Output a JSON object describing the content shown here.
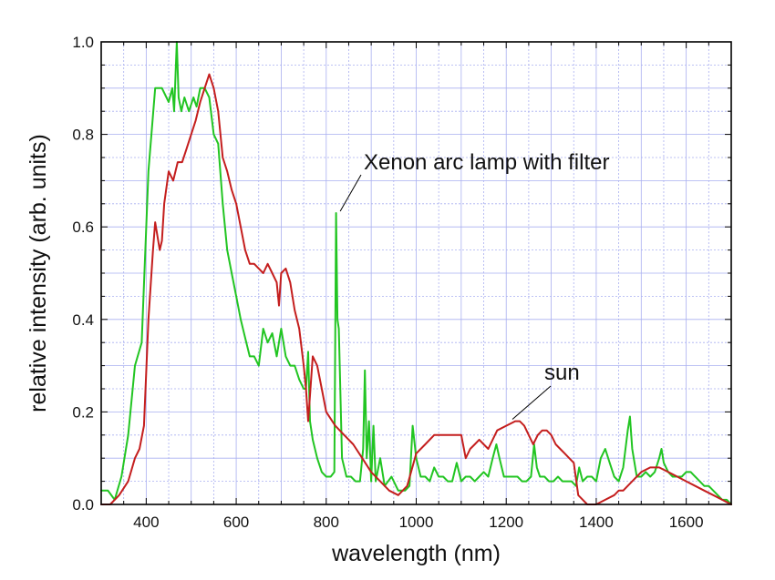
{
  "chart_data": {
    "type": "line",
    "title": "",
    "xlabel": "wavelength (nm)",
    "ylabel": "relative intensity (arb. units)",
    "xlim": [
      300,
      1700
    ],
    "ylim": [
      0,
      1.0
    ],
    "x_ticks": [
      400,
      600,
      800,
      1000,
      1200,
      1400,
      1600
    ],
    "x_tick_labels": [
      "400",
      "600",
      "800",
      "1000",
      "1200",
      "1400",
      "1600"
    ],
    "y_ticks": [
      0.0,
      0.2,
      0.4,
      0.6,
      0.8,
      1.0
    ],
    "y_tick_labels": [
      "0.0",
      "0.2",
      "0.4",
      "0.6",
      "0.8",
      "1.0"
    ],
    "grid": true,
    "grid_color": "#a9aff0",
    "annotations": [
      {
        "text": "Xenon arc lamp with filter",
        "x": 823,
        "y": 0.63
      },
      {
        "text": "sun",
        "x": 1230,
        "y": 0.18
      }
    ],
    "series": [
      {
        "color": "#22c522",
        "x": [
          300,
          315,
          330,
          345,
          360,
          375,
          390,
          405,
          420,
          435,
          450,
          458,
          462,
          468,
          472,
          478,
          485,
          495,
          505,
          512,
          520,
          530,
          540,
          550,
          560,
          570,
          580,
          590,
          600,
          610,
          620,
          630,
          640,
          650,
          660,
          670,
          680,
          690,
          700,
          710,
          720,
          730,
          740,
          750,
          755,
          760,
          764,
          770,
          780,
          790,
          800,
          810,
          818,
          822,
          825,
          828,
          835,
          845,
          855,
          865,
          875,
          882,
          886,
          890,
          895,
          900,
          905,
          910,
          920,
          930,
          945,
          960,
          975,
          985,
          992,
          1000,
          1010,
          1020,
          1030,
          1040,
          1050,
          1060,
          1070,
          1080,
          1090,
          1100,
          1110,
          1120,
          1130,
          1140,
          1150,
          1160,
          1170,
          1178,
          1185,
          1195,
          1205,
          1215,
          1225,
          1235,
          1245,
          1255,
          1262,
          1268,
          1275,
          1285,
          1295,
          1305,
          1315,
          1325,
          1335,
          1345,
          1355,
          1362,
          1370,
          1380,
          1390,
          1400,
          1410,
          1420,
          1430,
          1440,
          1450,
          1460,
          1470,
          1475,
          1480,
          1490,
          1500,
          1510,
          1520,
          1530,
          1540,
          1545,
          1550,
          1560,
          1570,
          1580,
          1590,
          1600,
          1610,
          1620,
          1630,
          1640,
          1650,
          1660,
          1670,
          1680,
          1690,
          1700
        ],
        "y": [
          0.03,
          0.03,
          0.01,
          0.06,
          0.15,
          0.3,
          0.35,
          0.72,
          0.9,
          0.9,
          0.87,
          0.9,
          0.85,
          1.0,
          0.88,
          0.85,
          0.88,
          0.85,
          0.88,
          0.86,
          0.9,
          0.9,
          0.88,
          0.8,
          0.78,
          0.65,
          0.55,
          0.5,
          0.45,
          0.4,
          0.36,
          0.32,
          0.32,
          0.3,
          0.38,
          0.35,
          0.37,
          0.32,
          0.38,
          0.32,
          0.3,
          0.3,
          0.27,
          0.25,
          0.25,
          0.33,
          0.18,
          0.14,
          0.1,
          0.07,
          0.06,
          0.06,
          0.07,
          0.63,
          0.4,
          0.38,
          0.1,
          0.06,
          0.06,
          0.05,
          0.05,
          0.12,
          0.29,
          0.1,
          0.18,
          0.05,
          0.17,
          0.05,
          0.1,
          0.04,
          0.06,
          0.03,
          0.03,
          0.04,
          0.17,
          0.1,
          0.06,
          0.06,
          0.05,
          0.08,
          0.06,
          0.06,
          0.05,
          0.05,
          0.09,
          0.05,
          0.06,
          0.06,
          0.05,
          0.06,
          0.07,
          0.06,
          0.1,
          0.13,
          0.1,
          0.06,
          0.06,
          0.06,
          0.06,
          0.05,
          0.05,
          0.06,
          0.13,
          0.08,
          0.06,
          0.06,
          0.05,
          0.05,
          0.06,
          0.05,
          0.05,
          0.05,
          0.04,
          0.08,
          0.05,
          0.06,
          0.06,
          0.05,
          0.1,
          0.12,
          0.09,
          0.06,
          0.05,
          0.08,
          0.16,
          0.19,
          0.12,
          0.06,
          0.06,
          0.07,
          0.06,
          0.07,
          0.1,
          0.12,
          0.09,
          0.07,
          0.06,
          0.06,
          0.06,
          0.07,
          0.07,
          0.06,
          0.05,
          0.04,
          0.04,
          0.03,
          0.02,
          0.01,
          0.01,
          0.0
        ]
      },
      {
        "color": "#c41e1e",
        "x": [
          300,
          320,
          340,
          360,
          375,
          385,
          395,
          405,
          415,
          420,
          425,
          430,
          435,
          440,
          450,
          460,
          470,
          480,
          490,
          500,
          510,
          520,
          530,
          540,
          550,
          560,
          570,
          580,
          590,
          600,
          610,
          620,
          630,
          640,
          650,
          660,
          670,
          680,
          690,
          695,
          700,
          710,
          720,
          730,
          740,
          750,
          755,
          760,
          765,
          770,
          780,
          790,
          800,
          820,
          840,
          860,
          880,
          900,
          920,
          940,
          960,
          980,
          1000,
          1020,
          1040,
          1060,
          1080,
          1100,
          1110,
          1120,
          1130,
          1140,
          1150,
          1160,
          1180,
          1200,
          1220,
          1230,
          1240,
          1250,
          1260,
          1270,
          1280,
          1290,
          1300,
          1310,
          1320,
          1330,
          1340,
          1350,
          1360,
          1380,
          1400,
          1420,
          1440,
          1450,
          1460,
          1480,
          1500,
          1520,
          1540,
          1560,
          1580,
          1600,
          1620,
          1640,
          1660,
          1680,
          1700
        ],
        "y": [
          0.0,
          0.0,
          0.02,
          0.05,
          0.1,
          0.12,
          0.17,
          0.4,
          0.55,
          0.61,
          0.58,
          0.55,
          0.57,
          0.65,
          0.72,
          0.7,
          0.74,
          0.74,
          0.77,
          0.8,
          0.83,
          0.87,
          0.9,
          0.93,
          0.9,
          0.85,
          0.75,
          0.72,
          0.68,
          0.65,
          0.6,
          0.55,
          0.52,
          0.52,
          0.51,
          0.5,
          0.52,
          0.5,
          0.48,
          0.43,
          0.5,
          0.51,
          0.48,
          0.42,
          0.38,
          0.3,
          0.25,
          0.18,
          0.25,
          0.32,
          0.3,
          0.25,
          0.2,
          0.17,
          0.15,
          0.13,
          0.1,
          0.07,
          0.05,
          0.03,
          0.02,
          0.04,
          0.11,
          0.13,
          0.15,
          0.15,
          0.15,
          0.15,
          0.1,
          0.12,
          0.13,
          0.14,
          0.13,
          0.12,
          0.16,
          0.17,
          0.18,
          0.18,
          0.17,
          0.15,
          0.13,
          0.15,
          0.16,
          0.16,
          0.15,
          0.13,
          0.12,
          0.11,
          0.1,
          0.09,
          0.02,
          0.0,
          0.0,
          0.01,
          0.02,
          0.03,
          0.03,
          0.05,
          0.07,
          0.08,
          0.08,
          0.07,
          0.06,
          0.05,
          0.04,
          0.03,
          0.02,
          0.01,
          0.0
        ]
      }
    ]
  }
}
